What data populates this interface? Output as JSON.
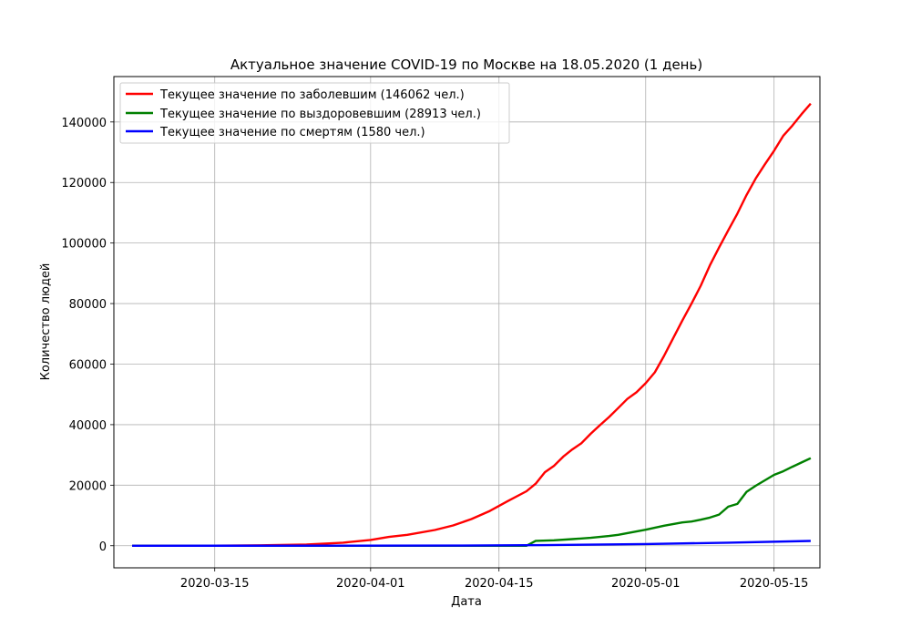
{
  "chart_data": {
    "type": "line",
    "title": "Актуальное значение COVID-19 по Москве на 18.05.2020 (1 день)",
    "xlabel": "Дата",
    "ylabel": "Количество людей",
    "x_range": [
      "2020-03-04",
      "2020-05-20"
    ],
    "ylim": [
      -7300,
      155000
    ],
    "x_ticks": [
      "2020-03-15",
      "2020-04-01",
      "2020-04-15",
      "2020-05-01",
      "2020-05-15"
    ],
    "y_ticks": [
      0,
      20000,
      40000,
      60000,
      80000,
      100000,
      120000,
      140000
    ],
    "grid": true,
    "legend_position": "top-left",
    "series": [
      {
        "name": "Текущее значение по заболевшим (146062 чел.)",
        "color": "#ff0000",
        "points": [
          [
            "2020-03-06",
            0
          ],
          [
            "2020-03-15",
            30
          ],
          [
            "2020-03-20",
            130
          ],
          [
            "2020-03-25",
            400
          ],
          [
            "2020-03-29",
            1000
          ],
          [
            "2020-04-01",
            1900
          ],
          [
            "2020-04-03",
            2900
          ],
          [
            "2020-04-05",
            3600
          ],
          [
            "2020-04-08",
            5200
          ],
          [
            "2020-04-10",
            6700
          ],
          [
            "2020-04-12",
            8800
          ],
          [
            "2020-04-14",
            11500
          ],
          [
            "2020-04-16",
            14800
          ],
          [
            "2020-04-18",
            18000
          ],
          [
            "2020-04-19",
            20500
          ],
          [
            "2020-04-20",
            24300
          ],
          [
            "2020-04-21",
            26400
          ],
          [
            "2020-04-22",
            29400
          ],
          [
            "2020-04-23",
            31800
          ],
          [
            "2020-04-24",
            33900
          ],
          [
            "2020-04-25",
            37000
          ],
          [
            "2020-04-26",
            39800
          ],
          [
            "2020-04-27",
            42500
          ],
          [
            "2020-04-28",
            45500
          ],
          [
            "2020-04-29",
            48500
          ],
          [
            "2020-04-30",
            50700
          ],
          [
            "2020-05-01",
            53700
          ],
          [
            "2020-05-02",
            57300
          ],
          [
            "2020-05-03",
            62700
          ],
          [
            "2020-05-04",
            68600
          ],
          [
            "2020-05-05",
            74400
          ],
          [
            "2020-05-06",
            80000
          ],
          [
            "2020-05-07",
            85900
          ],
          [
            "2020-05-08",
            92600
          ],
          [
            "2020-05-09",
            98500
          ],
          [
            "2020-05-10",
            104200
          ],
          [
            "2020-05-11",
            109700
          ],
          [
            "2020-05-12",
            115900
          ],
          [
            "2020-05-13",
            121300
          ],
          [
            "2020-05-14",
            126000
          ],
          [
            "2020-05-15",
            130500
          ],
          [
            "2020-05-16",
            135400
          ],
          [
            "2020-05-17",
            138800
          ],
          [
            "2020-05-18",
            142600
          ],
          [
            "2020-05-19",
            146062
          ]
        ]
      },
      {
        "name": "Текущее значение по выздоровевшим (28913 чел.)",
        "color": "#008000",
        "points": [
          [
            "2020-03-06",
            0
          ],
          [
            "2020-04-18",
            0
          ],
          [
            "2020-04-19",
            1600
          ],
          [
            "2020-04-21",
            1800
          ],
          [
            "2020-04-23",
            2200
          ],
          [
            "2020-04-25",
            2600
          ],
          [
            "2020-04-27",
            3200
          ],
          [
            "2020-04-28",
            3600
          ],
          [
            "2020-04-30",
            4700
          ],
          [
            "2020-05-01",
            5300
          ],
          [
            "2020-05-03",
            6600
          ],
          [
            "2020-05-05",
            7700
          ],
          [
            "2020-05-06",
            8000
          ],
          [
            "2020-05-07",
            8600
          ],
          [
            "2020-05-08",
            9300
          ],
          [
            "2020-05-09",
            10300
          ],
          [
            "2020-05-10",
            12900
          ],
          [
            "2020-05-11",
            13800
          ],
          [
            "2020-05-12",
            17800
          ],
          [
            "2020-05-13",
            19800
          ],
          [
            "2020-05-14",
            21600
          ],
          [
            "2020-05-15",
            23400
          ],
          [
            "2020-05-16",
            24600
          ],
          [
            "2020-05-17",
            26100
          ],
          [
            "2020-05-18",
            27500
          ],
          [
            "2020-05-19",
            28913
          ]
        ]
      },
      {
        "name": "Текущее значение по смертям (1580 чел.)",
        "color": "#0000ff",
        "points": [
          [
            "2020-03-06",
            0
          ],
          [
            "2020-04-10",
            50
          ],
          [
            "2020-04-20",
            200
          ],
          [
            "2020-05-01",
            550
          ],
          [
            "2020-05-10",
            1000
          ],
          [
            "2020-05-19",
            1580
          ]
        ]
      }
    ]
  }
}
